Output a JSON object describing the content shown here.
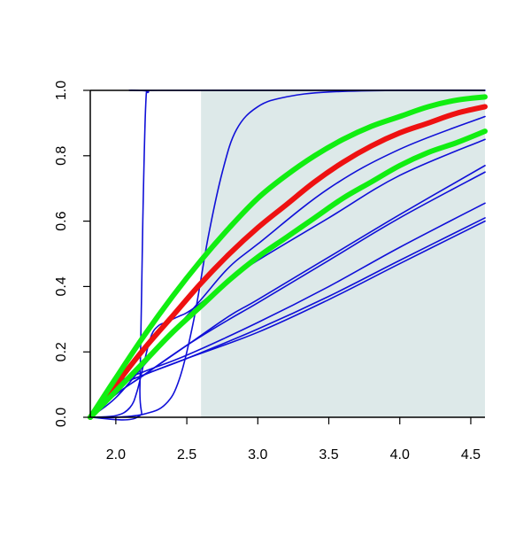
{
  "chart_data": {
    "type": "line",
    "title": "",
    "xlabel": "",
    "ylabel": "",
    "xlim": [
      1.82,
      4.6
    ],
    "ylim": [
      0.0,
      1.0
    ],
    "grid": false,
    "x_ticks": [
      "2.0",
      "2.5",
      "3.0",
      "3.5",
      "4.0",
      "4.5"
    ],
    "y_ticks": [
      "0.0",
      "0.2",
      "0.4",
      "0.6",
      "0.8",
      "1.0"
    ],
    "shaded_region": {
      "x_from": 2.6,
      "x_to": 4.6,
      "color": "#dde9e9"
    },
    "colors": {
      "blue": "#1010d8",
      "red": "#ee1111",
      "green": "#11ee11"
    },
    "series": [
      {
        "color": "blue",
        "weight": "thin",
        "x": [
          1.82,
          2.15,
          2.17,
          2.19,
          2.21,
          2.23,
          2.3,
          4.6
        ],
        "y": [
          0.0,
          0.0,
          0.1,
          0.6,
          0.95,
          0.995,
          1.0,
          1.0
        ]
      },
      {
        "color": "blue",
        "weight": "thin",
        "x": [
          1.82,
          2.0,
          2.2,
          2.35,
          2.45,
          2.55,
          2.65,
          2.75,
          2.85,
          3.0,
          3.2,
          3.5,
          4.0,
          4.6
        ],
        "y": [
          0.0,
          0.0,
          0.01,
          0.04,
          0.12,
          0.3,
          0.55,
          0.75,
          0.88,
          0.95,
          0.98,
          0.995,
          1.0,
          1.0
        ]
      },
      {
        "color": "blue",
        "weight": "thin",
        "x": [
          1.82,
          2.0,
          2.1,
          2.15,
          2.2,
          2.25,
          2.3,
          2.35,
          2.4,
          2.45,
          2.5,
          2.6,
          2.8,
          3.0,
          3.5,
          4.0,
          4.6
        ],
        "y": [
          0.0,
          0.005,
          0.03,
          0.08,
          0.17,
          0.25,
          0.28,
          0.29,
          0.3,
          0.31,
          0.32,
          0.35,
          0.42,
          0.48,
          0.61,
          0.74,
          0.85
        ]
      },
      {
        "color": "blue",
        "weight": "thin",
        "x": [
          1.82,
          2.0,
          2.2,
          2.4,
          2.6,
          2.8,
          3.0,
          3.5,
          4.0,
          4.6
        ],
        "y": [
          0.0,
          0.06,
          0.16,
          0.26,
          0.36,
          0.46,
          0.53,
          0.7,
          0.82,
          0.92
        ]
      },
      {
        "color": "blue",
        "weight": "thin",
        "x": [
          1.82,
          2.0,
          2.2,
          2.5,
          2.8,
          3.0,
          3.5,
          4.0,
          4.6
        ],
        "y": [
          0.0,
          0.07,
          0.13,
          0.22,
          0.31,
          0.36,
          0.49,
          0.62,
          0.77
        ]
      },
      {
        "color": "blue",
        "weight": "thin",
        "x": [
          1.82,
          2.0,
          2.2,
          2.5,
          2.8,
          3.0,
          3.5,
          4.0,
          4.6
        ],
        "y": [
          0.0,
          0.07,
          0.13,
          0.22,
          0.3,
          0.35,
          0.48,
          0.61,
          0.75
        ]
      },
      {
        "color": "blue",
        "weight": "thin",
        "x": [
          1.82,
          2.0,
          2.2,
          2.5,
          3.0,
          3.5,
          4.0,
          4.6
        ],
        "y": [
          0.0,
          0.1,
          0.14,
          0.19,
          0.29,
          0.4,
          0.52,
          0.655
        ]
      },
      {
        "color": "blue",
        "weight": "thin",
        "x": [
          1.82,
          2.0,
          2.2,
          2.5,
          3.0,
          3.5,
          4.0,
          4.6
        ],
        "y": [
          0.0,
          0.09,
          0.13,
          0.18,
          0.27,
          0.37,
          0.48,
          0.61
        ]
      },
      {
        "color": "blue",
        "weight": "thin",
        "x": [
          1.82,
          2.0,
          2.2,
          2.5,
          3.0,
          3.5,
          4.0,
          4.6
        ],
        "y": [
          0.0,
          0.09,
          0.13,
          0.18,
          0.26,
          0.36,
          0.47,
          0.6
        ]
      },
      {
        "color": "red",
        "weight": "thick",
        "x": [
          1.82,
          2.0,
          2.2,
          2.4,
          2.6,
          2.8,
          3.0,
          3.2,
          3.4,
          3.6,
          3.8,
          4.0,
          4.2,
          4.4,
          4.6
        ],
        "y": [
          0.0,
          0.1,
          0.21,
          0.31,
          0.41,
          0.5,
          0.58,
          0.65,
          0.72,
          0.78,
          0.83,
          0.87,
          0.9,
          0.93,
          0.95
        ]
      },
      {
        "color": "green",
        "weight": "thick",
        "x": [
          1.82,
          2.0,
          2.2,
          2.4,
          2.6,
          2.8,
          3.0,
          3.2,
          3.4,
          3.6,
          3.8,
          4.0,
          4.2,
          4.4,
          4.6
        ],
        "y": [
          0.0,
          0.12,
          0.25,
          0.37,
          0.48,
          0.58,
          0.67,
          0.74,
          0.8,
          0.85,
          0.89,
          0.92,
          0.95,
          0.97,
          0.98
        ]
      },
      {
        "color": "green",
        "weight": "thick",
        "x": [
          1.82,
          2.0,
          2.2,
          2.4,
          2.6,
          2.8,
          3.0,
          3.2,
          3.4,
          3.6,
          3.8,
          4.0,
          4.2,
          4.4,
          4.6
        ],
        "y": [
          0.0,
          0.08,
          0.17,
          0.26,
          0.34,
          0.42,
          0.49,
          0.55,
          0.61,
          0.67,
          0.72,
          0.77,
          0.81,
          0.84,
          0.875
        ]
      }
    ]
  }
}
